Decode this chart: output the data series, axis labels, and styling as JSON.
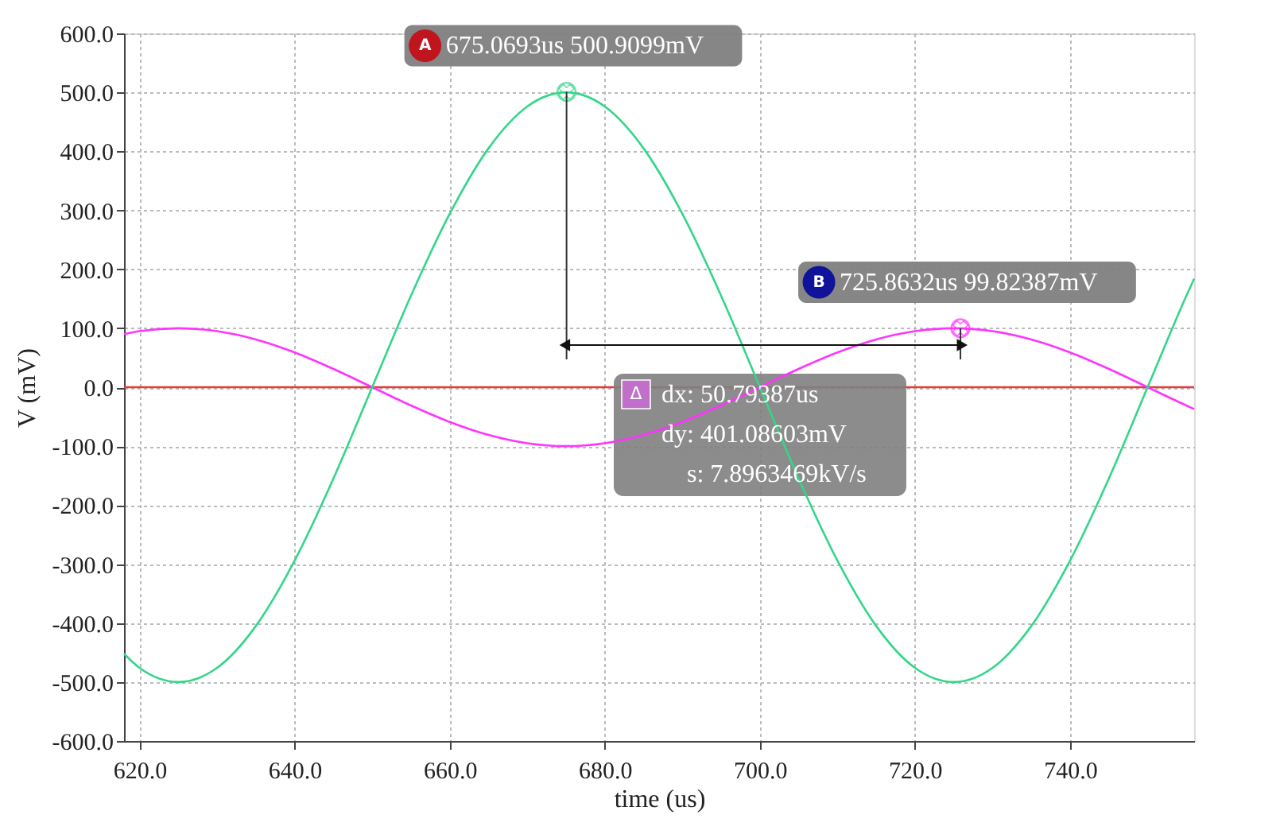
{
  "chart_data": {
    "type": "line",
    "xlabel": "time (us)",
    "ylabel": "V (mV)",
    "xlim": [
      618,
      756
    ],
    "ylim": [
      -600,
      600
    ],
    "xticks": [
      {
        "value": 620,
        "label": "620.0"
      },
      {
        "value": 640,
        "label": "640.0"
      },
      {
        "value": 660,
        "label": "660.0"
      },
      {
        "value": 680,
        "label": "680.0"
      },
      {
        "value": 700,
        "label": "700.0"
      },
      {
        "value": 720,
        "label": "720.0"
      },
      {
        "value": 740,
        "label": "740.0"
      }
    ],
    "yticks": [
      {
        "value": 600,
        "label": "600.0"
      },
      {
        "value": 500,
        "label": "500.0"
      },
      {
        "value": 400,
        "label": "400.0"
      },
      {
        "value": 300,
        "label": "300.0"
      },
      {
        "value": 200,
        "label": "200.0"
      },
      {
        "value": 100,
        "label": "100.0"
      },
      {
        "value": 0,
        "label": "0.0"
      },
      {
        "value": -100,
        "label": "-100.0"
      },
      {
        "value": -200,
        "label": "-200.0"
      },
      {
        "value": -300,
        "label": "-300.0"
      },
      {
        "value": -400,
        "label": "-400.0"
      },
      {
        "value": -500,
        "label": "-500.0"
      },
      {
        "value": -600,
        "label": "-600.0"
      }
    ],
    "grid": true,
    "marker": "none",
    "line_style": "solid",
    "series": [
      {
        "color": "#e03c3c",
        "x": [
          618,
          756
        ],
        "values": [
          0,
          0
        ]
      },
      {
        "color": "#ff33ff",
        "x": [
          618,
          620,
          625,
          630,
          635,
          640,
          645,
          650,
          655,
          660,
          665,
          670,
          675,
          680,
          685,
          690,
          695,
          700,
          705,
          710,
          715,
          720,
          725,
          730,
          735,
          740,
          745,
          750,
          755,
          756
        ],
        "values": [
          90,
          95,
          100,
          95,
          81,
          59,
          31,
          0,
          -31,
          -59,
          -81,
          -95,
          -100,
          -95,
          -81,
          -59,
          -31,
          0,
          31,
          59,
          81,
          95,
          100,
          95,
          81,
          59,
          31,
          0,
          -31,
          -37
        ]
      },
      {
        "color": "#33d68a",
        "x": [
          618,
          620,
          625,
          630,
          635,
          640,
          645,
          650,
          655,
          660,
          665,
          670,
          675,
          680,
          685,
          690,
          695,
          700,
          705,
          710,
          715,
          720,
          725,
          730,
          735,
          740,
          745,
          750,
          755,
          756
        ],
        "values": [
          -452,
          -476,
          -500,
          -476,
          -405,
          -294,
          -155,
          0,
          155,
          294,
          405,
          476,
          500,
          476,
          405,
          294,
          155,
          0,
          -155,
          -294,
          -405,
          -476,
          -500,
          -476,
          -405,
          -294,
          -155,
          0,
          155,
          184
        ]
      }
    ],
    "annotations": [
      "A",
      {
        "text": "675.0693us 500.9099mV",
        "x": 675.0693,
        "y": 500.9099
      },
      "B",
      {
        "text": "725.8632us 99.82387mV",
        "x": 725.8632,
        "y": 99.82387
      },
      "Δ",
      "dx: 50.79387us",
      "dy: 401.08603mV",
      "s: 7.8963469kV/s"
    ]
  }
}
